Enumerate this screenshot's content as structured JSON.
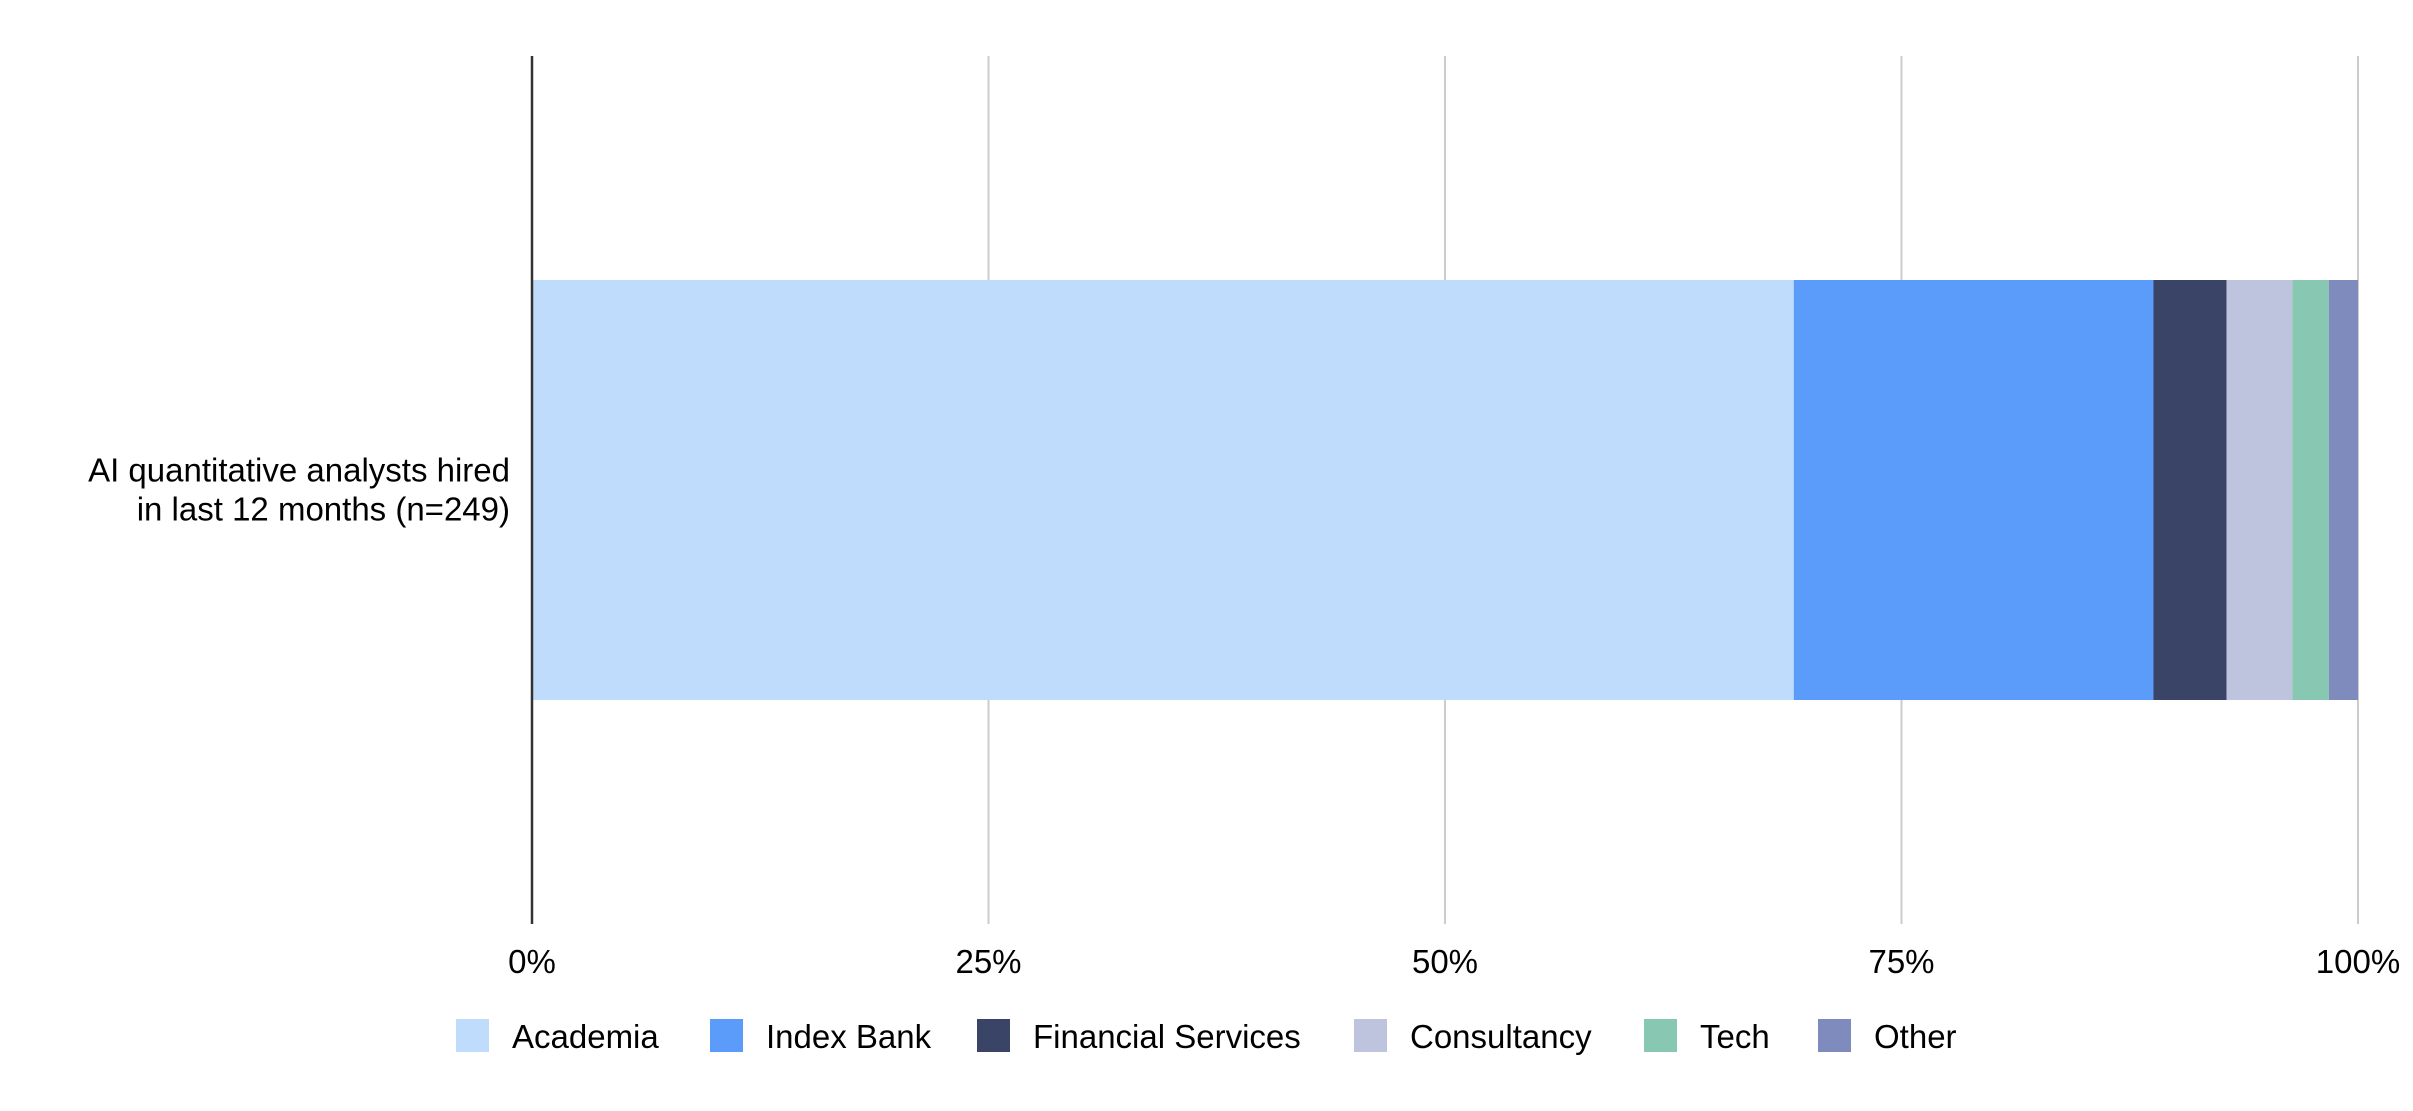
{
  "chart_data": {
    "type": "bar",
    "orientation": "horizontal",
    "stacked": "percent",
    "categories": [
      "AI quantitative analysts hired in last 12 months (n=249)"
    ],
    "category_label_lines": [
      "AI quantitative analysts hired",
      "in last 12 months (n=249)"
    ],
    "series": [
      {
        "name": "Academia",
        "values": [
          69.1
        ],
        "color": "#bfdcfd"
      },
      {
        "name": "Index Bank",
        "values": [
          19.7
        ],
        "color": "#5b9cfa"
      },
      {
        "name": "Financial Services",
        "values": [
          4.0
        ],
        "color": "#3a4466"
      },
      {
        "name": "Consultancy",
        "values": [
          3.6
        ],
        "color": "#bec4de"
      },
      {
        "name": "Tech",
        "values": [
          2.0
        ],
        "color": "#88c8b2"
      },
      {
        "name": "Other",
        "values": [
          1.6
        ],
        "color": "#7e8bbc"
      }
    ],
    "xlim": [
      0,
      100
    ],
    "x_ticks": [
      0,
      25,
      50,
      75,
      100
    ],
    "x_tick_labels": [
      "0%",
      "25%",
      "50%",
      "75%",
      "100%"
    ],
    "title": "",
    "xlabel": "",
    "ylabel": "",
    "grid": true,
    "legend_position": "bottom"
  }
}
